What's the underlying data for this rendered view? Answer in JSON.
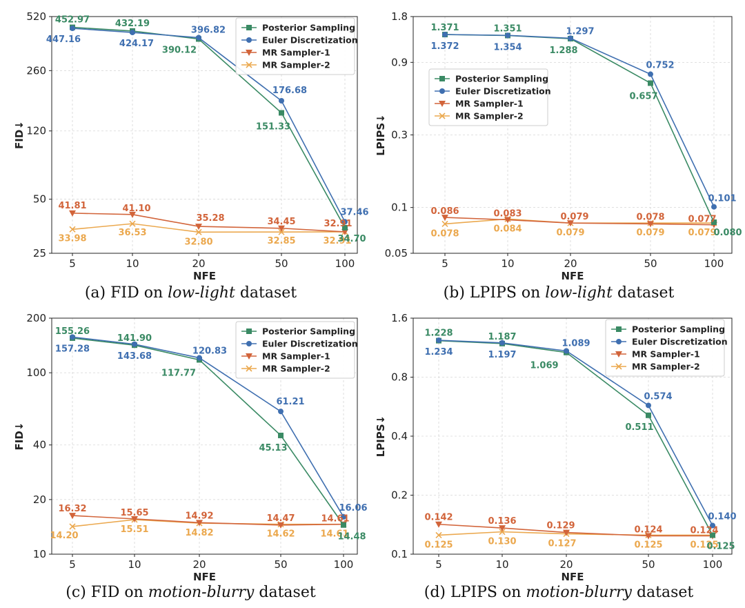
{
  "colors": {
    "posterior": "#3a8a64",
    "euler": "#3f6fb0",
    "mr1": "#d2643a",
    "mr2": "#eba84e",
    "grid": "#d6d6d6"
  },
  "chart_data": [
    {
      "type": "line",
      "panel": "a",
      "caption": {
        "prefix": "(a) FID on ",
        "italic": "low-light",
        "suffix": " dataset"
      },
      "xlabel": "NFE",
      "ylabel": "FID↓",
      "categories": [
        "5",
        "10",
        "20",
        "50",
        "100"
      ],
      "yscale": "log",
      "ylim": [
        25,
        520
      ],
      "yticks": [
        25,
        50,
        120,
        260,
        520
      ],
      "legend_position": "top-right",
      "series": [
        {
          "name": "Posterior Sampling",
          "key": "posterior",
          "marker": "square",
          "values": [
            452.97,
            432.19,
            390.12,
            151.33,
            34.7
          ],
          "labels": [
            "452.97",
            "432.19",
            "390.12",
            "151.33",
            "34.70"
          ]
        },
        {
          "name": "Euler Discretization",
          "key": "euler",
          "marker": "circle",
          "values": [
            447.16,
            424.17,
            396.82,
            176.68,
            37.46
          ],
          "labels": [
            "447.16",
            "424.17",
            "396.82",
            "176.68",
            "37.46"
          ]
        },
        {
          "name": "MR Sampler-1",
          "key": "mr1",
          "marker": "triangle",
          "values": [
            41.81,
            41.1,
            35.28,
            34.45,
            32.91
          ],
          "labels": [
            "41.81",
            "41.10",
            "35.28",
            "34.45",
            "32.91"
          ]
        },
        {
          "name": "MR Sampler-2",
          "key": "mr2",
          "marker": "x",
          "values": [
            33.98,
            36.53,
            32.8,
            32.85,
            32.91
          ],
          "labels": [
            "33.98",
            "36.53",
            "32.80",
            "32.85",
            "32.91"
          ]
        }
      ]
    },
    {
      "type": "line",
      "panel": "b",
      "caption": {
        "prefix": "(b) LPIPS on ",
        "italic": "low-light",
        "suffix": " dataset"
      },
      "xlabel": "NFE",
      "ylabel": "LPIPS↓",
      "categories": [
        "5",
        "10",
        "20",
        "50",
        "100"
      ],
      "yscale": "log",
      "ylim": [
        0.05,
        1.8
      ],
      "yticks": [
        0.05,
        0.1,
        0.3,
        0.9,
        1.8
      ],
      "legend_position": "center-left",
      "series": [
        {
          "name": "Posterior Sampling",
          "key": "posterior",
          "marker": "square",
          "values": [
            1.371,
            1.351,
            1.288,
            0.657,
            0.08
          ],
          "labels": [
            "1.371",
            "1.351",
            "1.288",
            "0.657",
            "0.080"
          ]
        },
        {
          "name": "Euler Discretization",
          "key": "euler",
          "marker": "circle",
          "values": [
            1.372,
            1.354,
            1.297,
            0.752,
            0.101
          ],
          "labels": [
            "1.372",
            "1.354",
            "1.297",
            "0.752",
            "0.101"
          ]
        },
        {
          "name": "MR Sampler-1",
          "key": "mr1",
          "marker": "triangle",
          "values": [
            0.086,
            0.083,
            0.079,
            0.078,
            0.077
          ],
          "labels": [
            "0.086",
            "0.083",
            "0.079",
            "0.078",
            "0.077"
          ]
        },
        {
          "name": "MR Sampler-2",
          "key": "mr2",
          "marker": "x",
          "values": [
            0.078,
            0.084,
            0.079,
            0.079,
            0.079
          ],
          "labels": [
            "0.078",
            "0.084",
            "0.079",
            "0.079",
            "0.079"
          ]
        }
      ]
    },
    {
      "type": "line",
      "panel": "c",
      "caption": {
        "prefix": "(c) FID on ",
        "italic": "motion-blurry",
        "suffix": " dataset"
      },
      "xlabel": "NFE",
      "ylabel": "FID↓",
      "categories": [
        "5",
        "10",
        "20",
        "50",
        "100"
      ],
      "yscale": "log",
      "ylim": [
        10,
        200
      ],
      "yticks": [
        10,
        20,
        40,
        100,
        200
      ],
      "legend_position": "top-right",
      "series": [
        {
          "name": "Posterior Sampling",
          "key": "posterior",
          "marker": "square",
          "values": [
            155.26,
            141.9,
            117.77,
            45.13,
            14.48
          ],
          "labels": [
            "155.26",
            "141.90",
            "117.77",
            "45.13",
            "14.48"
          ]
        },
        {
          "name": "Euler Discretization",
          "key": "euler",
          "marker": "circle",
          "values": [
            157.28,
            143.68,
            120.83,
            61.21,
            16.06
          ],
          "labels": [
            "157.28",
            "143.68",
            "120.83",
            "61.21",
            "16.06"
          ]
        },
        {
          "name": "MR Sampler-1",
          "key": "mr1",
          "marker": "triangle",
          "values": [
            16.32,
            15.65,
            14.92,
            14.47,
            14.61
          ],
          "labels": [
            "16.32",
            "15.65",
            "14.92",
            "14.47",
            "14.61"
          ]
        },
        {
          "name": "MR Sampler-2",
          "key": "mr2",
          "marker": "x",
          "values": [
            14.2,
            15.51,
            14.82,
            14.62,
            14.61
          ],
          "labels": [
            "14.20",
            "15.51",
            "14.82",
            "14.62",
            "14.61"
          ]
        }
      ]
    },
    {
      "type": "line",
      "panel": "d",
      "caption": {
        "prefix": "(d) LPIPS on ",
        "italic": "motion-blurry",
        "suffix": " dataset"
      },
      "xlabel": "NFE",
      "ylabel": "LPIPS↓",
      "categories": [
        "5",
        "10",
        "20",
        "50",
        "100"
      ],
      "yscale": "log",
      "ylim": [
        0.1,
        1.6
      ],
      "yticks": [
        0.1,
        0.2,
        0.4,
        0.8,
        1.6
      ],
      "legend_position": "top-right",
      "series": [
        {
          "name": "Posterior Sampling",
          "key": "posterior",
          "marker": "square",
          "values": [
            1.228,
            1.187,
            1.069,
            0.511,
            0.125
          ],
          "labels": [
            "1.228",
            "1.187",
            "1.069",
            "0.511",
            "0.125"
          ]
        },
        {
          "name": "Euler Discretization",
          "key": "euler",
          "marker": "circle",
          "values": [
            1.234,
            1.197,
            1.089,
            0.574,
            0.14
          ],
          "labels": [
            "1.234",
            "1.197",
            "1.089",
            "0.574",
            "0.140"
          ]
        },
        {
          "name": "MR Sampler-1",
          "key": "mr1",
          "marker": "triangle",
          "values": [
            0.142,
            0.136,
            0.129,
            0.124,
            0.124
          ],
          "labels": [
            "0.142",
            "0.136",
            "0.129",
            "0.124",
            "0.124"
          ]
        },
        {
          "name": "MR Sampler-2",
          "key": "mr2",
          "marker": "x",
          "values": [
            0.125,
            0.13,
            0.127,
            0.125,
            0.125
          ],
          "labels": [
            "0.125",
            "0.130",
            "0.127",
            "0.125",
            "0.125"
          ]
        }
      ]
    }
  ]
}
